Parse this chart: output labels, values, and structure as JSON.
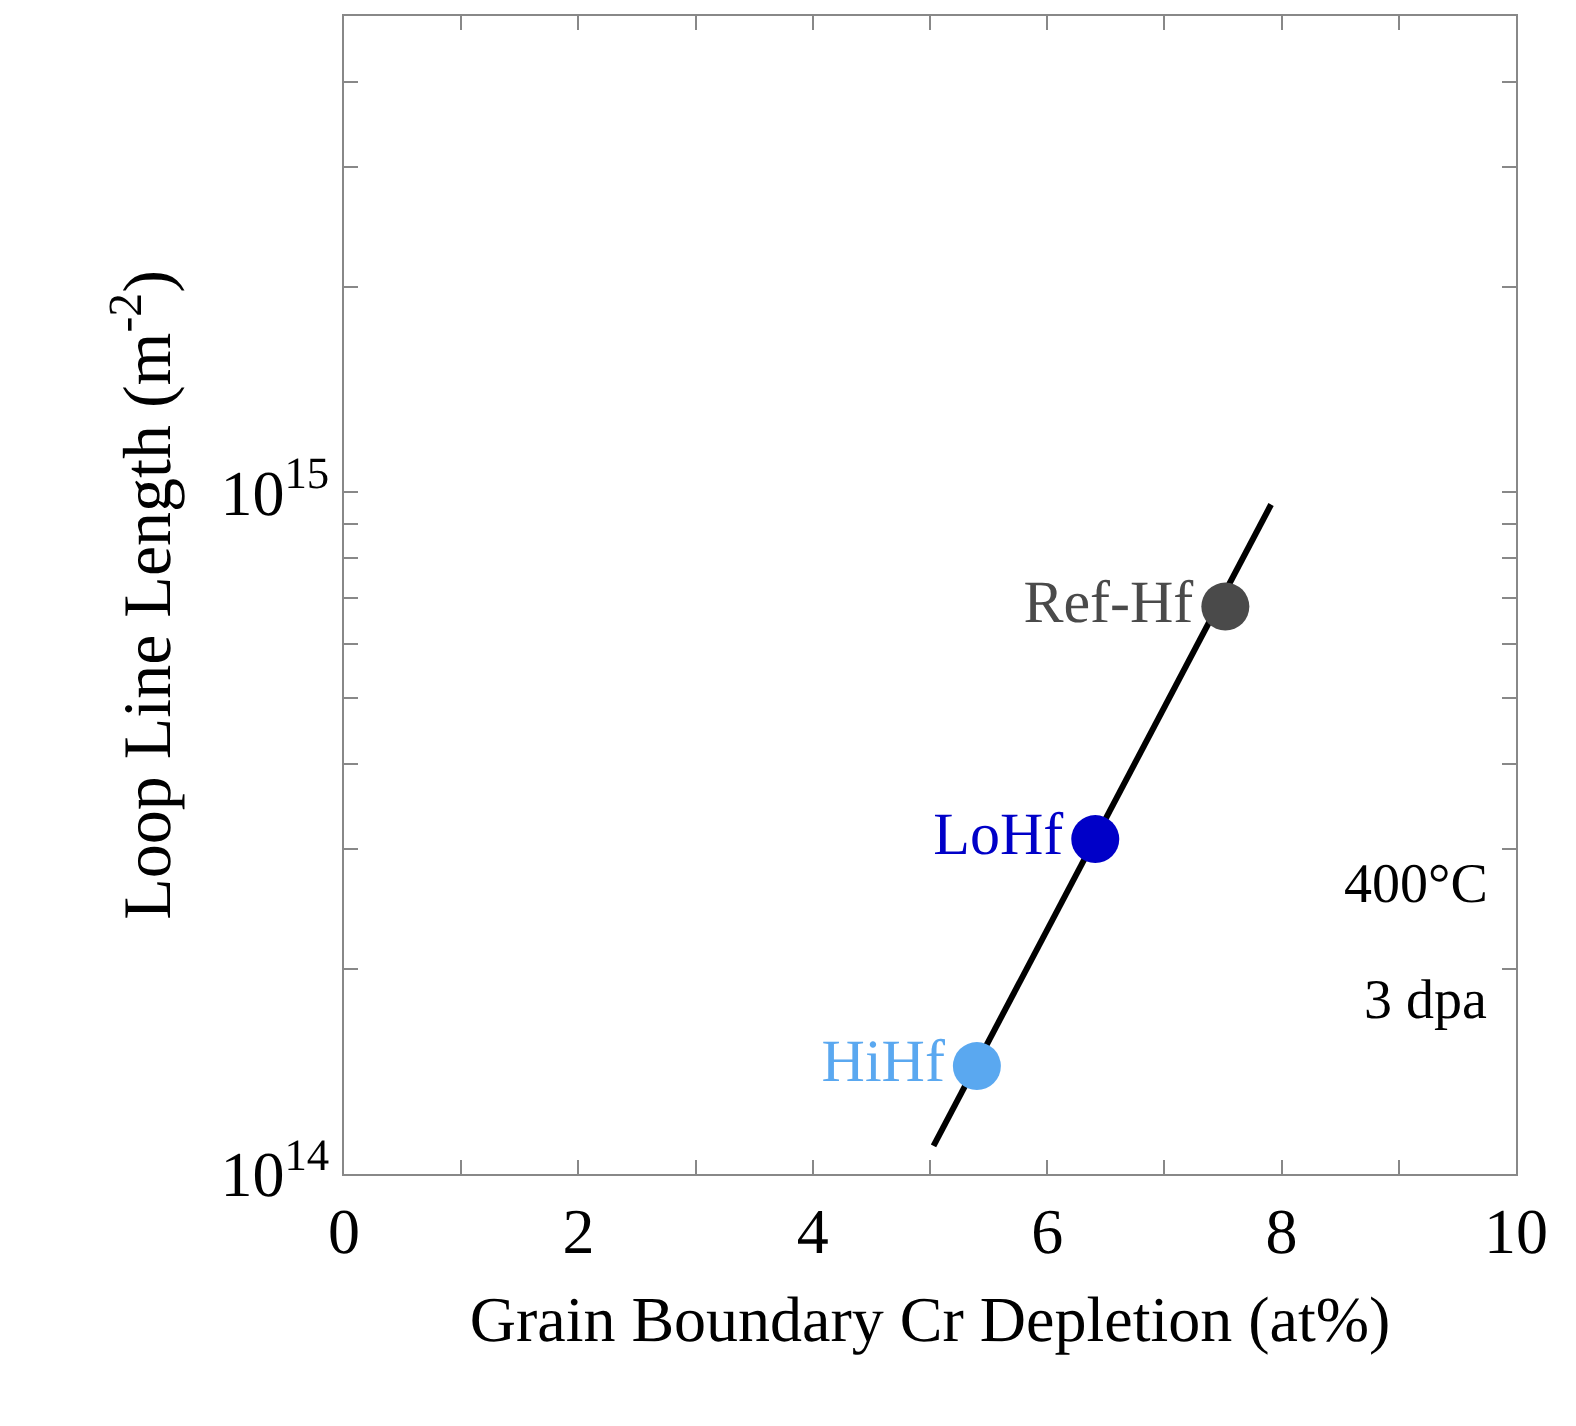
{
  "chart_data": {
    "type": "scatter",
    "xlabel": "Grain Boundary Cr Depletion (at%)",
    "ylabel": "Loop Line Length (m$^{-2}$)",
    "series": [
      {
        "type": "line",
        "marker": "none",
        "color": "#000000",
        "x": [
          5.03,
          7.91
        ],
        "values": [
          110000000000000.0,
          960000000000000.0
        ]
      },
      {
        "name": "Ref-Hf",
        "marker": "circle",
        "color": "#4a4a4a",
        "x": [
          7.52
        ],
        "values": [
          680000000000000.0
        ]
      },
      {
        "name": "LoHf",
        "marker": "circle",
        "color": "#0000c8",
        "x": [
          6.41
        ],
        "values": [
          310000000000000.0
        ]
      },
      {
        "name": "HiHf",
        "marker": "circle",
        "color": "#5aa8f0",
        "x": [
          5.4
        ],
        "values": [
          144000000000000.0
        ]
      }
    ],
    "xlim": [
      0,
      10
    ],
    "ylim": [
      100000000000000.0,
      5000000000000000.0
    ],
    "log": "y",
    "xticks": [
      0,
      {
        "value": 1,
        "label": null
      },
      2,
      {
        "value": 3,
        "label": null
      },
      4,
      {
        "value": 5,
        "label": null
      },
      6,
      {
        "value": 7,
        "label": null
      },
      8,
      {
        "value": 9,
        "label": null
      },
      10
    ],
    "yticks": [
      {
        "value": 100000000000000.0,
        "label": "10$^{14}$"
      },
      {
        "value": 200000000000000.0,
        "label": null
      },
      {
        "value": 300000000000000.0,
        "label": null
      },
      {
        "value": 400000000000000.0,
        "label": null
      },
      {
        "value": 500000000000000.0,
        "label": null
      },
      {
        "value": 600000000000000.0,
        "label": null
      },
      {
        "value": 700000000000000.0,
        "label": null
      },
      {
        "value": 800000000000000.0,
        "label": null
      },
      {
        "value": 900000000000000.0,
        "label": null
      },
      {
        "value": 1000000000000000.0,
        "label": "10$^{15}$"
      },
      {
        "value": 2000000000000000.0,
        "label": null
      },
      {
        "value": 3000000000000000.0,
        "label": null
      },
      {
        "value": 4000000000000000.0,
        "label": null
      },
      {
        "value": 5000000000000000.0,
        "label": null
      }
    ],
    "legend": false,
    "annotations": [
      "400°C",
      "3 dpa"
    ]
  }
}
